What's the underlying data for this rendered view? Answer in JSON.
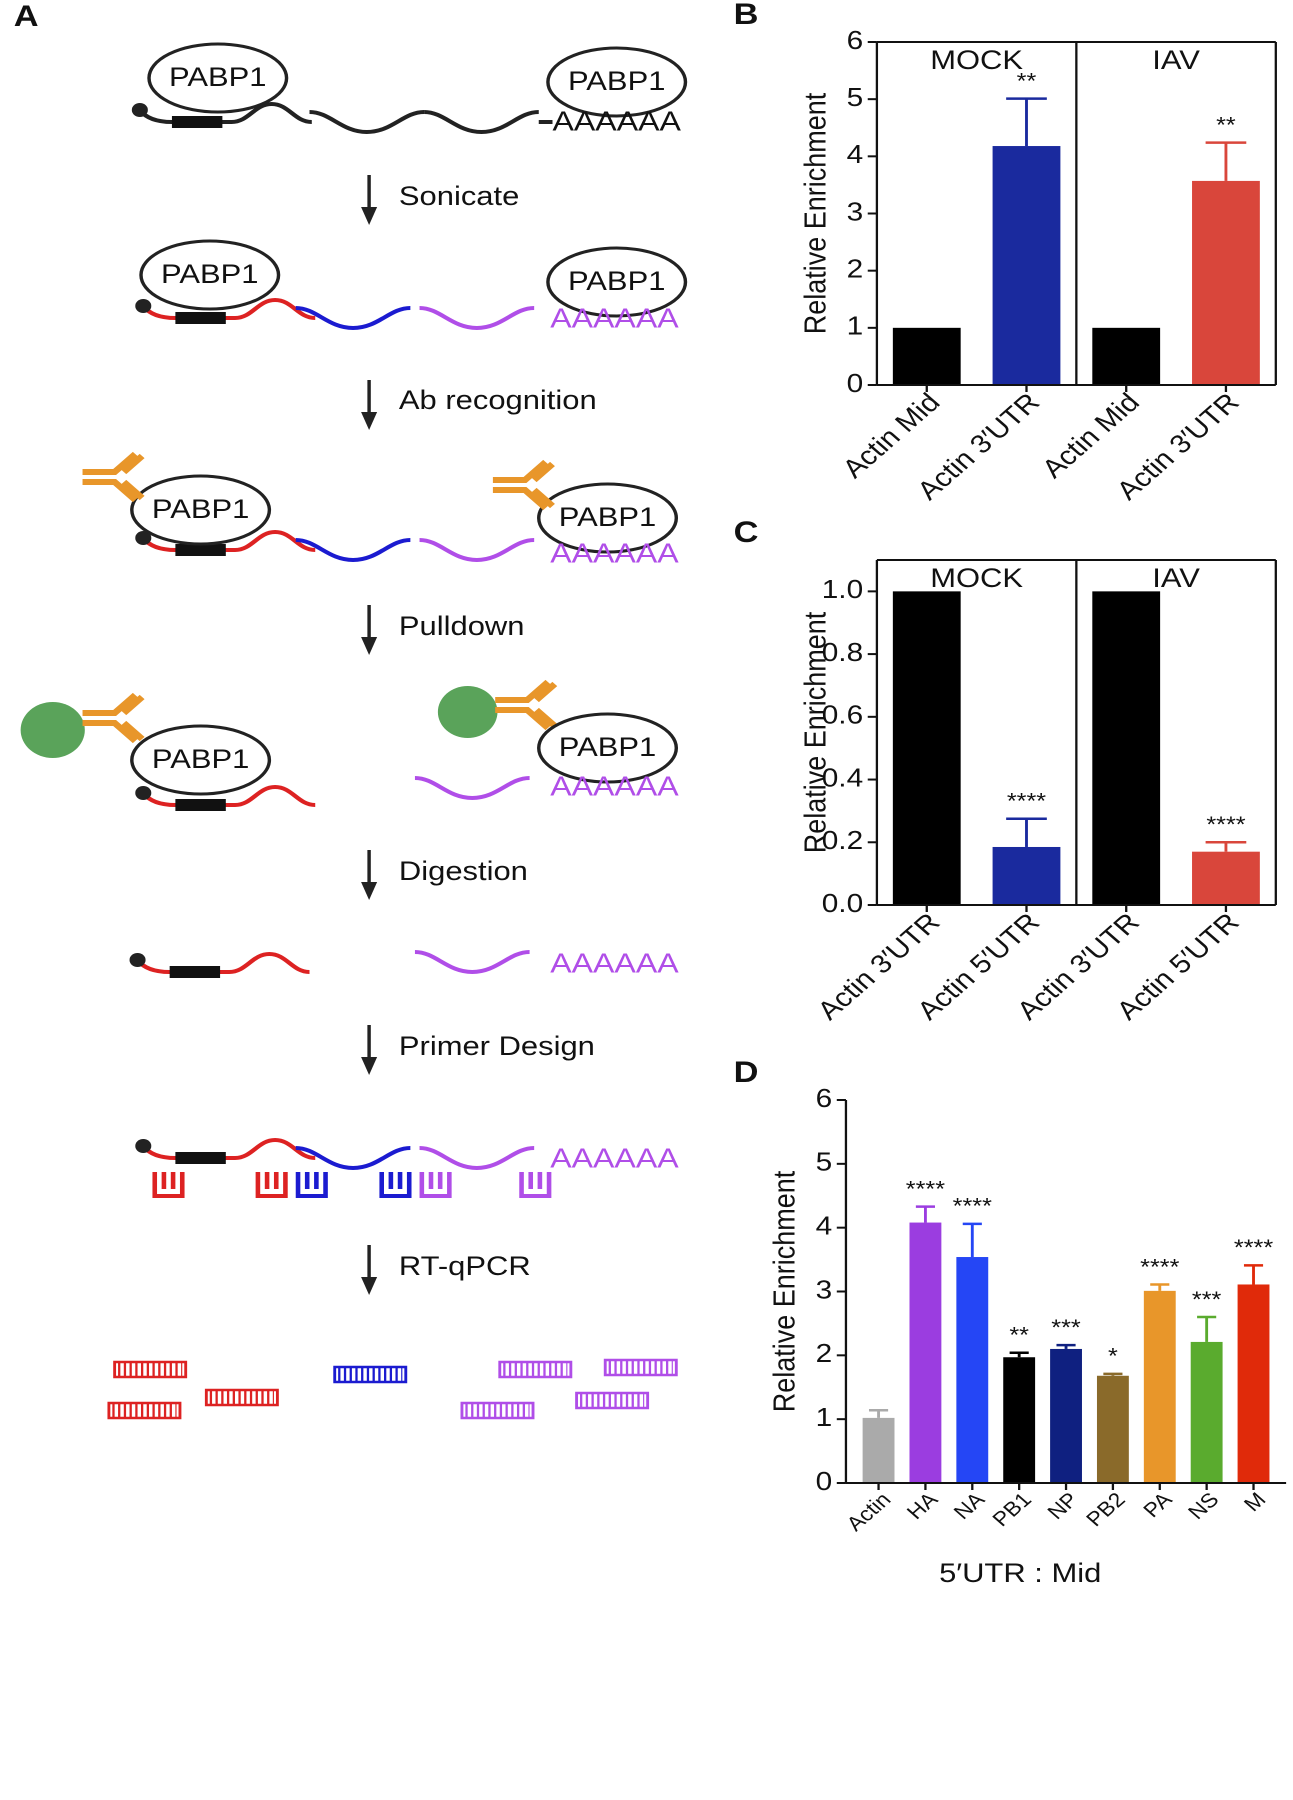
{
  "diagram": {
    "panel": "A",
    "protein": "PABP1",
    "poly_a": "AAAAAA",
    "steps": [
      "Sonicate",
      "Ab recognition",
      "Pulldown",
      "Digestion",
      "Primer Design",
      "RT-qPCR"
    ]
  },
  "chart_data": [
    {
      "type": "bar",
      "panel": "B",
      "ylabel": "Relative Enrichment",
      "categories": [
        "Actin Mid",
        "Actin 3′UTR",
        "Actin Mid",
        "Actin 3′UTR"
      ],
      "values": [
        1,
        4.18,
        1,
        3.57
      ],
      "errors": [
        null,
        0.83,
        null,
        0.67
      ],
      "significance": [
        null,
        "**",
        null,
        "**"
      ],
      "colors": [
        "#000000",
        "#1a2a9e",
        "#000000",
        "#d9463b"
      ],
      "groups": [
        {
          "name": "MOCK",
          "size": 2
        },
        {
          "name": "IAV",
          "size": 2
        }
      ],
      "ylim": [
        0,
        6
      ],
      "yticks": [
        0,
        1,
        2,
        3,
        4,
        5,
        6
      ]
    },
    {
      "type": "bar",
      "panel": "C",
      "ylabel": "Relative Enrichment",
      "categories": [
        "Actin 3′UTR",
        "Actin 5′UTR",
        "Actin 3′UTR",
        "Actin 5′UTR"
      ],
      "values": [
        1,
        0.185,
        1,
        0.17
      ],
      "errors": [
        null,
        0.09,
        null,
        0.03
      ],
      "significance": [
        null,
        "****",
        null,
        "****"
      ],
      "colors": [
        "#000000",
        "#1a2a9e",
        "#000000",
        "#d9463b"
      ],
      "groups": [
        {
          "name": "MOCK",
          "size": 2
        },
        {
          "name": "IAV",
          "size": 2
        }
      ],
      "ylim": [
        0,
        1.1
      ],
      "yticks": [
        {
          "value": 0,
          "label": "0.0"
        },
        0.2,
        0.4,
        0.6,
        0.8,
        {
          "value": 1,
          "label": "1.0"
        }
      ]
    },
    {
      "type": "bar",
      "panel": "D",
      "ylabel": "Relative Enrichment",
      "xlabel": "5′UTR : Mid",
      "categories": [
        "Actin",
        "HA",
        "NA",
        "PB1",
        "NP",
        "PB2",
        "PA",
        "NS",
        "M"
      ],
      "values": [
        1.02,
        4.08,
        3.54,
        1.97,
        2.1,
        1.68,
        3.01,
        2.21,
        3.11
      ],
      "errors": [
        0.12,
        0.25,
        0.52,
        0.07,
        0.06,
        0.03,
        0.1,
        0.39,
        0.3
      ],
      "significance": [
        null,
        "****",
        "****",
        "**",
        "***",
        "*",
        "****",
        "***",
        "****"
      ],
      "colors": [
        "#aaaaaa",
        "#9b3de0",
        "#2546f5",
        "#000000",
        "#0f2080",
        "#8a6a2a",
        "#e8962a",
        "#5aab2e",
        "#e02a0a"
      ],
      "ylim": [
        0,
        6
      ],
      "yticks": [
        0,
        1,
        2,
        3,
        4,
        5,
        6
      ]
    }
  ]
}
